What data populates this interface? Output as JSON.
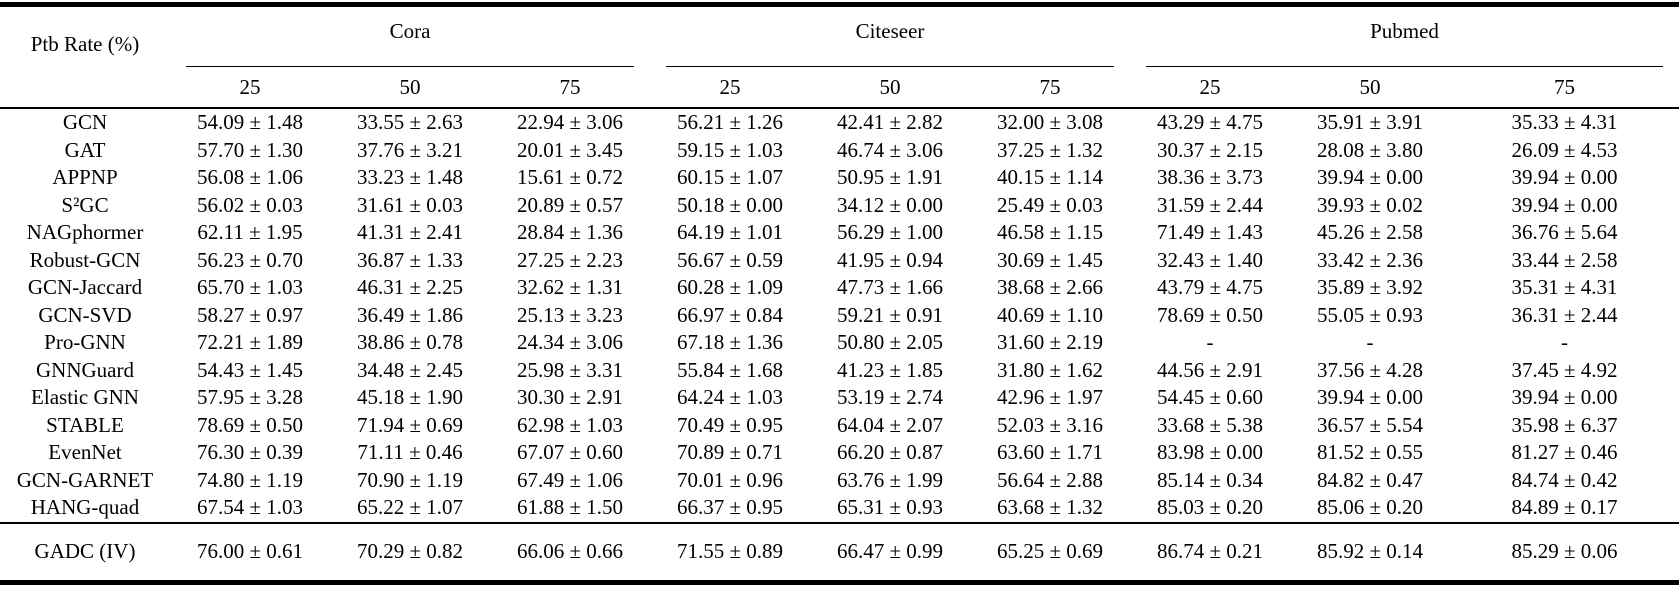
{
  "table": {
    "row_header_label": "Ptb Rate (%)",
    "groups": [
      {
        "label": "Cora",
        "subcols": [
          "25",
          "50",
          "75"
        ]
      },
      {
        "label": "Citeseer",
        "subcols": [
          "25",
          "50",
          "75"
        ]
      },
      {
        "label": "Pubmed",
        "subcols": [
          "25",
          "50",
          "75"
        ]
      }
    ],
    "rows": [
      {
        "method": "GCN",
        "values": [
          "54.09 ± 1.48",
          "33.55 ± 2.63",
          "22.94 ± 3.06",
          "56.21 ± 1.26",
          "42.41 ± 2.82",
          "32.00 ± 3.08",
          "43.29 ± 4.75",
          "35.91 ± 3.91",
          "35.33 ± 4.31"
        ],
        "bold": []
      },
      {
        "method": "GAT",
        "values": [
          "57.70 ± 1.30",
          "37.76 ± 3.21",
          "20.01 ± 3.45",
          "59.15 ± 1.03",
          "46.74 ± 3.06",
          "37.25 ± 1.32",
          "30.37 ± 2.15",
          "28.08 ± 3.80",
          "26.09 ± 4.53"
        ],
        "bold": []
      },
      {
        "method": "APPNP",
        "values": [
          "56.08 ± 1.06",
          "33.23 ± 1.48",
          "15.61 ± 0.72",
          "60.15 ± 1.07",
          "50.95 ± 1.91",
          "40.15 ± 1.14",
          "38.36 ± 3.73",
          "39.94 ± 0.00",
          "39.94 ± 0.00"
        ],
        "bold": []
      },
      {
        "method": "S²GC",
        "values": [
          "56.02 ± 0.03",
          "31.61 ± 0.03",
          "20.89 ± 0.57",
          "50.18 ± 0.00",
          "34.12 ± 0.00",
          "25.49 ± 0.03",
          "31.59 ± 2.44",
          "39.93 ± 0.02",
          "39.94 ± 0.00"
        ],
        "bold": []
      },
      {
        "method": "NAGphormer",
        "values": [
          "62.11 ± 1.95",
          "41.31 ± 2.41",
          "28.84 ± 1.36",
          "64.19 ± 1.01",
          "56.29 ± 1.00",
          "46.58 ± 1.15",
          "71.49 ± 1.43",
          "45.26 ± 2.58",
          "36.76 ± 5.64"
        ],
        "bold": []
      },
      {
        "method": "Robust-GCN",
        "values": [
          "56.23 ± 0.70",
          "36.87 ± 1.33",
          "27.25 ± 2.23",
          "56.67 ± 0.59",
          "41.95 ± 0.94",
          "30.69 ± 1.45",
          "32.43 ± 1.40",
          "33.42 ± 2.36",
          "33.44 ± 2.58"
        ],
        "bold": []
      },
      {
        "method": "GCN-Jaccard",
        "values": [
          "65.70 ± 1.03",
          "46.31 ± 2.25",
          "32.62 ± 1.31",
          "60.28 ± 1.09",
          "47.73 ± 1.66",
          "38.68 ± 2.66",
          "43.79 ± 4.75",
          "35.89 ± 3.92",
          "35.31 ± 4.31"
        ],
        "bold": []
      },
      {
        "method": "GCN-SVD",
        "values": [
          "58.27 ± 0.97",
          "36.49 ± 1.86",
          "25.13 ± 3.23",
          "66.97 ± 0.84",
          "59.21 ± 0.91",
          "40.69 ± 1.10",
          "78.69 ± 0.50",
          "55.05 ± 0.93",
          "36.31 ± 2.44"
        ],
        "bold": []
      },
      {
        "method": "Pro-GNN",
        "values": [
          "72.21 ± 1.89",
          "38.86 ± 0.78",
          "24.34 ± 3.06",
          "67.18 ± 1.36",
          "50.80 ± 2.05",
          "31.60 ± 2.19",
          "-",
          "-",
          "-"
        ],
        "bold": []
      },
      {
        "method": "GNNGuard",
        "values": [
          "54.43 ± 1.45",
          "34.48 ± 2.45",
          "25.98 ± 3.31",
          "55.84 ± 1.68",
          "41.23 ± 1.85",
          "31.80 ± 1.62",
          "44.56 ± 2.91",
          "37.56 ± 4.28",
          "37.45 ± 4.92"
        ],
        "bold": []
      },
      {
        "method": "Elastic GNN",
        "values": [
          "57.95 ± 3.28",
          "45.18 ± 1.90",
          "30.30 ± 2.91",
          "64.24 ± 1.03",
          "53.19 ± 2.74",
          "42.96 ± 1.97",
          "54.45 ± 0.60",
          "39.94 ± 0.00",
          "39.94 ± 0.00"
        ],
        "bold": []
      },
      {
        "method": "STABLE",
        "values": [
          "78.69 ± 0.50",
          "71.94 ± 0.69",
          "62.98 ± 1.03",
          "70.49 ± 0.95",
          "64.04 ± 2.07",
          "52.03 ± 3.16",
          "33.68 ± 5.38",
          "36.57 ± 5.54",
          "35.98 ± 6.37"
        ],
        "bold": [
          0,
          1
        ]
      },
      {
        "method": "EvenNet",
        "values": [
          "76.30 ± 0.39",
          "71.11 ± 0.46",
          "67.07 ± 0.60",
          "70.89 ± 0.71",
          "66.20 ± 0.87",
          "63.60 ± 1.71",
          "83.98 ± 0.00",
          "81.52 ± 0.55",
          "81.27 ± 0.46"
        ],
        "bold": []
      },
      {
        "method": "GCN-GARNET",
        "values": [
          "74.80 ± 1.19",
          "70.90 ± 1.19",
          "67.49 ± 1.06",
          "70.01 ± 0.96",
          "63.76 ± 1.99",
          "56.64 ± 2.88",
          "85.14 ± 0.34",
          "84.82 ± 0.47",
          "84.74 ± 0.42"
        ],
        "bold": [
          2
        ]
      },
      {
        "method": "HANG-quad",
        "values": [
          "67.54 ± 1.03",
          "65.22 ± 1.07",
          "61.88 ± 1.50",
          "66.37 ± 0.95",
          "65.31 ± 0.93",
          "63.68 ± 1.32",
          "85.03 ± 0.20",
          "85.06 ± 0.20",
          "84.89 ± 0.17"
        ],
        "bold": []
      }
    ],
    "footer_row": {
      "method": "GADC (IV)",
      "values": [
        "76.00 ± 0.61",
        "70.29 ± 0.82",
        "66.06 ± 0.66",
        "71.55 ± 0.89",
        "66.47 ± 0.99",
        "65.25 ± 0.69",
        "86.74 ± 0.21",
        "85.92 ± 0.14",
        "85.29 ± 0.06"
      ],
      "bold": [
        3,
        4,
        5,
        6,
        7,
        8
      ]
    }
  }
}
